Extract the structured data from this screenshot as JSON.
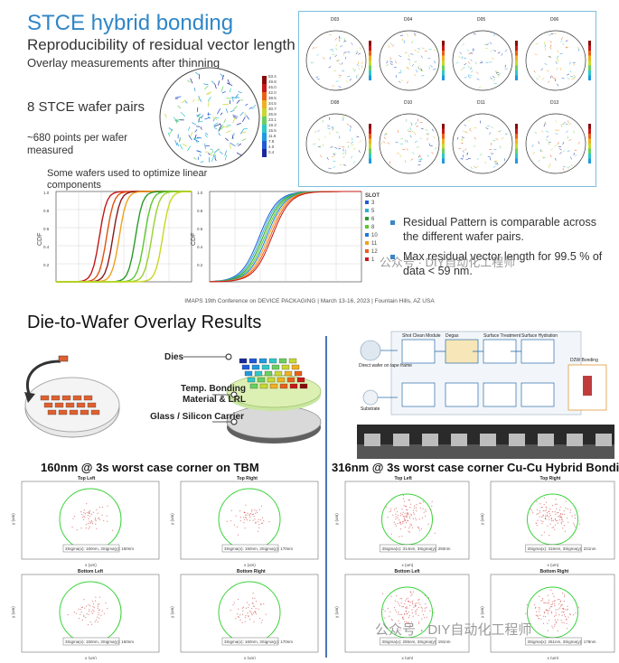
{
  "top": {
    "title": "STCE hybrid bonding",
    "subtitle": "Reproducibility of residual vector length",
    "overlay_note": "Overlay measurements after thinning",
    "pairs": "8 STCE wafer pairs",
    "points": "~680 points per wafer measured",
    "optimize_note": "Some wafers used to optimize linear components",
    "wafer_ids": [
      "D03",
      "D04",
      "D05",
      "D06",
      "D08",
      "D10",
      "D11",
      "D13"
    ],
    "colorbar_ticks": [
      "53.4",
      "49.8",
      "46.0",
      "42.0",
      "38.5",
      "34.5",
      "30.7",
      "26.9",
      "23.1",
      "19.3",
      "15.5",
      "11.6",
      "7.8",
      "4.0",
      "0.4"
    ],
    "cdf_left": {
      "ylabel": "CDF",
      "yticks": [
        "1.0",
        "0.8",
        "0.6",
        "0.4",
        "0.2"
      ]
    },
    "cdf_right": {
      "ylabel": "CDF",
      "yticks": [
        "1.0",
        "0.8",
        "0.6",
        "0.4",
        "0.2"
      ]
    },
    "slot_legend": {
      "title": "SLOT",
      "items": [
        "3",
        "5",
        "6",
        "8",
        "10",
        "11",
        "12",
        "1"
      ]
    },
    "bullets": [
      "Residual Pattern is comparable across the different wafer pairs.",
      "Max residual vector length for 99.5 % of data < 59 nm."
    ],
    "watermark": "公众号 · DIY自动化工程师"
  },
  "conference": "IMAPS 19th Conference on DEVICE PACKAGING | March 13-16, 2023 | Fountain Hills, AZ USA",
  "bottom": {
    "title": "Die-to-Wafer Overlay Results",
    "stack_labels": {
      "dies": "Dies",
      "bond": "Temp. Bonding Material & LRL",
      "carrier": "Glass / Silicon Carrier"
    },
    "process_labels": [
      "Shot Clean Module",
      "Degas",
      "Surface Treatment",
      "Surface Hydration",
      "D2W Bonding",
      "Direct wafer on tape frame",
      "Substrate"
    ],
    "left_heading": "160nm @ 3s worst case corner on TBM",
    "right_heading": "316nm @ 3s worst case corner Cu-Cu Hybrid Bondi",
    "left_plots": [
      {
        "title": "Top Left",
        "note": "3Sigma(x): 160nm, 3Sigma(y): 150nm"
      },
      {
        "title": "Top Right",
        "note": "3Sigma(x): 150nm, 3Sigma(y): 170nm"
      },
      {
        "title": "Bottom Left",
        "note": "3Sigma(x): 150nm, 3Sigma(y): 160nm"
      },
      {
        "title": "Bottom Right",
        "note": "3Sigma(x): 160nm, 3Sigma(y): 170nm"
      }
    ],
    "right_plots": [
      {
        "title": "Top Left",
        "note": "3Sigma(x): 314nm, 3Sigma(y): 250nm"
      },
      {
        "title": "Top Right",
        "note": "3Sigma(x): 316nm, 3Sigma(y): 221nm"
      },
      {
        "title": "Bottom Left",
        "note": "3Sigma(x): 255nm, 3Sigma(y): 191nm"
      },
      {
        "title": "Bottom Right",
        "note": "3Sigma(x): 261nm, 3Sigma(y): 178nm"
      }
    ],
    "axis": {
      "x": "x (um)",
      "y": "y (um)"
    },
    "watermark": "公众号 · DIY自动化工程师"
  }
}
